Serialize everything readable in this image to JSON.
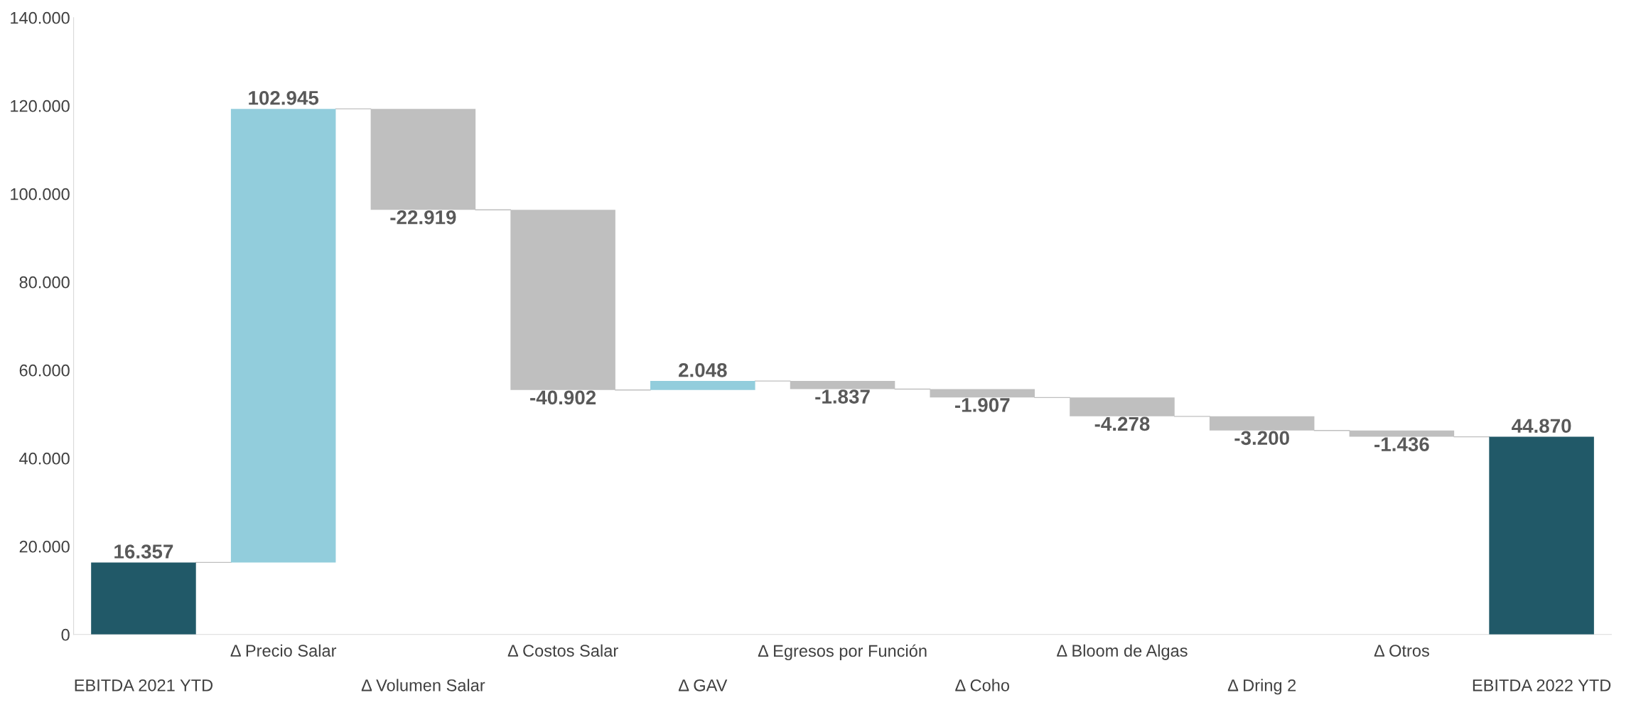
{
  "chart_data": {
    "type": "bar",
    "categories": [
      "EBITDA 2021 YTD",
      "Δ Precio Salar",
      "Δ Volumen Salar",
      "Δ Costos Salar",
      "Δ GAV",
      "Δ Egresos por Función",
      "Δ Coho",
      "Δ Bloom de Algas",
      "Δ Dring 2",
      "Δ Otros",
      "EBITDA 2022 YTD"
    ],
    "values": [
      16357,
      102945,
      -22919,
      -40902,
      2048,
      -1837,
      -1907,
      -4278,
      -3200,
      -1436,
      44870
    ],
    "base": [
      0,
      16357,
      119302,
      96383,
      55481,
      57529,
      55692,
      53785,
      49507,
      46307,
      0
    ],
    "colors": [
      "#215968",
      "#92cddc",
      "#bfbfbf",
      "#bfbfbf",
      "#92cddc",
      "#bfbfbf",
      "#bfbfbf",
      "#bfbfbf",
      "#bfbfbf",
      "#bfbfbf",
      "#215968"
    ],
    "value_labels": [
      "16.357",
      "102.945",
      "-22.919",
      "-40.902",
      "2.048",
      "-1.837",
      "-1.907",
      "-4.278",
      "-3.200",
      "-1.436",
      "44.870"
    ],
    "ylim": [
      0,
      140000
    ],
    "yticks": [
      {
        "value": 0,
        "label": "0"
      },
      {
        "value": 20000,
        "label": "20.000"
      },
      {
        "value": 40000,
        "label": "40.000"
      },
      {
        "value": 60000,
        "label": "60.000"
      },
      {
        "value": 80000,
        "label": "80.000"
      },
      {
        "value": 100000,
        "label": "100.000"
      },
      {
        "value": 120000,
        "label": "120.000"
      },
      {
        "value": 140000,
        "label": "140.000"
      }
    ],
    "grid": false,
    "legend": false
  }
}
